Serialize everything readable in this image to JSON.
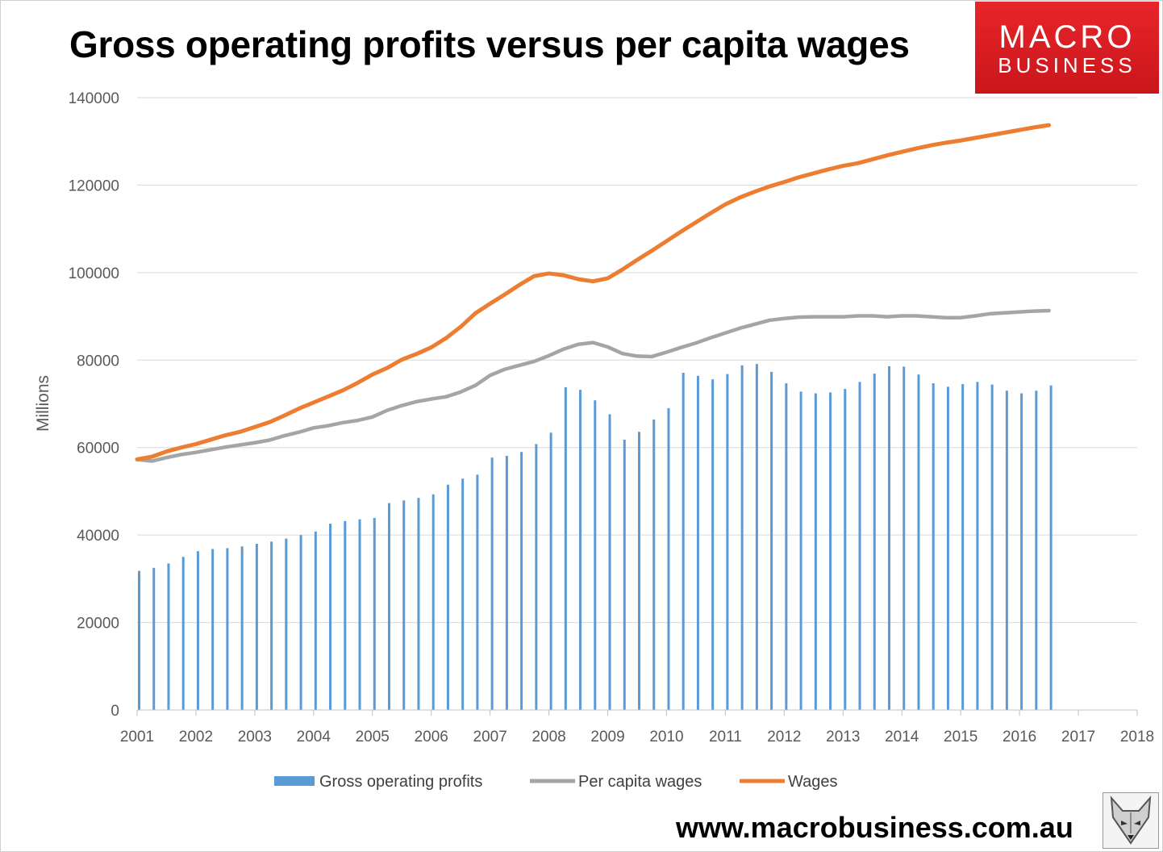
{
  "header": {
    "title": "Gross operating profits versus per capita wages",
    "logo_line1": "MACRO",
    "logo_line2": "BUSINESS",
    "logo_icon": "fox-icon"
  },
  "footer": {
    "url": "www.macrobusiness.com.au"
  },
  "colors": {
    "profits": "#5b9bd5",
    "per_capita": "#a5a5a5",
    "wages": "#ed7d31",
    "grid": "#d9d9d9",
    "logo_bg": "#e0201f"
  },
  "chart_data": {
    "type": "bar+line",
    "title": "Gross operating profits versus per capita wages",
    "ylabel": "Millions",
    "xlabel": "",
    "ylim": [
      0,
      140000
    ],
    "yticks": [
      0,
      20000,
      40000,
      60000,
      80000,
      100000,
      120000,
      140000
    ],
    "xlim": [
      2001,
      2018
    ],
    "xticks": [
      2001,
      2002,
      2003,
      2004,
      2005,
      2006,
      2007,
      2008,
      2009,
      2010,
      2011,
      2012,
      2013,
      2014,
      2015,
      2016,
      2017,
      2018
    ],
    "grid": true,
    "legend_position": "bottom",
    "series": [
      {
        "name": "Gross operating profits",
        "kind": "bar",
        "x": [
          2001.0,
          2001.25,
          2001.5,
          2001.75,
          2002.0,
          2002.25,
          2002.5,
          2002.75,
          2003.0,
          2003.25,
          2003.5,
          2003.75,
          2004.0,
          2004.25,
          2004.5,
          2004.75,
          2005.0,
          2005.25,
          2005.5,
          2005.75,
          2006.0,
          2006.25,
          2006.5,
          2006.75,
          2007.0,
          2007.25,
          2007.5,
          2007.75,
          2008.0,
          2008.25,
          2008.5,
          2008.75,
          2009.0,
          2009.25,
          2009.5,
          2009.75,
          2010.0,
          2010.25,
          2010.5,
          2010.75,
          2011.0,
          2011.25,
          2011.5,
          2011.75,
          2012.0,
          2012.25,
          2012.5,
          2012.75,
          2013.0,
          2013.25,
          2013.5,
          2013.75,
          2014.0,
          2014.25,
          2014.5,
          2014.75,
          2015.0,
          2015.25,
          2015.5,
          2015.75,
          2016.0,
          2016.25,
          2016.5
        ],
        "values": [
          31800,
          32500,
          33500,
          35000,
          36300,
          36800,
          37000,
          37400,
          38000,
          38500,
          39200,
          40000,
          40800,
          42600,
          43200,
          43600,
          43900,
          47300,
          47900,
          48500,
          49300,
          51500,
          52900,
          53800,
          57700,
          58100,
          59000,
          60800,
          63400,
          73800,
          73200,
          70800,
          67600,
          61800,
          63600,
          66400,
          69000,
          77100,
          76400,
          75600,
          76800,
          78800,
          79100,
          77300,
          74700,
          72800,
          72400,
          72600,
          73400,
          75000,
          76900,
          78600,
          78500,
          76700,
          74700,
          73900,
          74500,
          75000,
          74400,
          73000,
          72400,
          73000,
          74200
        ]
      },
      {
        "name": "Per capita wages",
        "kind": "line",
        "x": [
          2001.0,
          2001.25,
          2001.5,
          2001.75,
          2002.0,
          2002.25,
          2002.5,
          2002.75,
          2003.0,
          2003.25,
          2003.5,
          2003.75,
          2004.0,
          2004.25,
          2004.5,
          2004.75,
          2005.0,
          2005.25,
          2005.5,
          2005.75,
          2006.0,
          2006.25,
          2006.5,
          2006.75,
          2007.0,
          2007.25,
          2007.5,
          2007.75,
          2008.0,
          2008.25,
          2008.5,
          2008.75,
          2009.0,
          2009.25,
          2009.5,
          2009.75,
          2010.0,
          2010.25,
          2010.5,
          2010.75,
          2011.0,
          2011.25,
          2011.5,
          2011.75,
          2012.0,
          2012.25,
          2012.5,
          2012.75,
          2013.0,
          2013.25,
          2013.5,
          2013.75,
          2014.0,
          2014.25,
          2014.5,
          2014.75,
          2015.0,
          2015.25,
          2015.5,
          2015.75,
          2016.0,
          2016.25,
          2016.5
        ],
        "values": [
          57300,
          56900,
          57700,
          58400,
          58900,
          59500,
          60100,
          60600,
          61100,
          61700,
          62700,
          63500,
          64500,
          65000,
          65700,
          66200,
          67000,
          68500,
          69600,
          70500,
          71100,
          71600,
          72700,
          74200,
          76500,
          77900,
          78800,
          79700,
          81000,
          82500,
          83600,
          84000,
          83000,
          81500,
          80900,
          80800,
          81800,
          82900,
          83900,
          85100,
          86200,
          87300,
          88200,
          89100,
          89500,
          89800,
          89900,
          89900,
          89900,
          90100,
          90100,
          89900,
          90100,
          90100,
          89900,
          89700,
          89700,
          90100,
          90600,
          90800,
          91000,
          91200,
          91300
        ]
      },
      {
        "name": "Wages",
        "kind": "line",
        "x": [
          2001.0,
          2001.25,
          2001.5,
          2001.75,
          2002.0,
          2002.25,
          2002.5,
          2002.75,
          2003.0,
          2003.25,
          2003.5,
          2003.75,
          2004.0,
          2004.25,
          2004.5,
          2004.75,
          2005.0,
          2005.25,
          2005.5,
          2005.75,
          2006.0,
          2006.25,
          2006.5,
          2006.75,
          2007.0,
          2007.25,
          2007.5,
          2007.75,
          2008.0,
          2008.25,
          2008.5,
          2008.75,
          2009.0,
          2009.25,
          2009.5,
          2009.75,
          2010.0,
          2010.25,
          2010.5,
          2010.75,
          2011.0,
          2011.25,
          2011.5,
          2011.75,
          2012.0,
          2012.25,
          2012.5,
          2012.75,
          2013.0,
          2013.25,
          2013.5,
          2013.75,
          2014.0,
          2014.25,
          2014.5,
          2014.75,
          2015.0,
          2015.25,
          2015.5,
          2015.75,
          2016.0,
          2016.25,
          2016.5
        ],
        "values": [
          57300,
          57900,
          59100,
          60000,
          60800,
          61800,
          62800,
          63600,
          64700,
          65800,
          67300,
          68900,
          70300,
          71700,
          73100,
          74800,
          76700,
          78200,
          80100,
          81400,
          82900,
          85000,
          87600,
          90700,
          92900,
          95000,
          97200,
          99200,
          99800,
          99400,
          98500,
          98000,
          98700,
          100700,
          102900,
          105000,
          107200,
          109400,
          111500,
          113600,
          115600,
          117200,
          118500,
          119700,
          120700,
          121800,
          122700,
          123600,
          124400,
          125000,
          125900,
          126800,
          127600,
          128400,
          129100,
          129700,
          130200,
          130800,
          131400,
          132000,
          132600,
          133200,
          133700
        ]
      }
    ]
  }
}
